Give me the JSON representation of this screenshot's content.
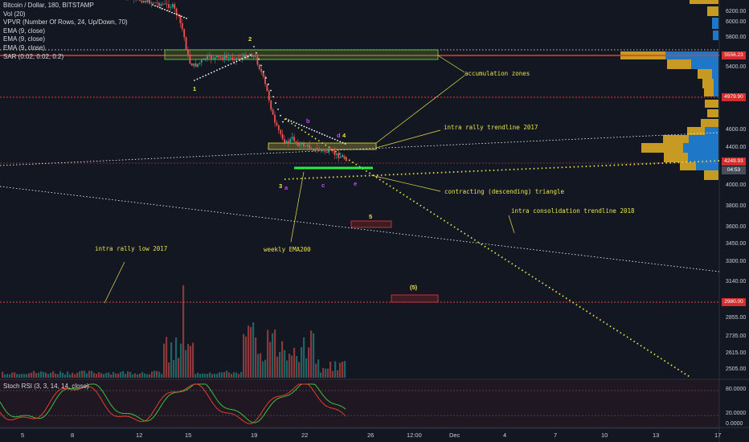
{
  "legend": {
    "title": "Bitcoin / Dollar, 180, BITSTAMP",
    "indicators": [
      "Vol (20)",
      "VPVR (Number Of Rows, 24, Up/Down, 70)",
      "EMA (9, close)",
      "EMA (9, close)",
      "EMA (9, close)",
      "SAR (0.02, 0.02, 0.2)"
    ]
  },
  "rsi_legend": "Stoch RSI (3, 3, 14, 14, close)",
  "annotations": {
    "accumulation": "accumulation zones",
    "intra_rally_trend": "intra rally trendline 2017",
    "contracting": "contracting (descending) triangle",
    "intra_consolidation": "intra consolidation trendline 2018",
    "weekly_ema": "weekly EMA200",
    "intra_rally_low": "intra rally low 2017"
  },
  "waves": {
    "w1": "1",
    "w2": "2",
    "w3": "3",
    "w4": "4",
    "w5": "5",
    "w5p": "(5)",
    "a": "a",
    "b": "b",
    "c": "c",
    "d": "d",
    "e": "e"
  },
  "price_axis": [
    "6200.00",
    "6000.00",
    "5800.00",
    "5400.00",
    "4600.00",
    "4400.00",
    "4000.00",
    "3800.00",
    "3600.00",
    "3450.00",
    "3300.00",
    "3140.00",
    "2855.00",
    "2735.00",
    "2615.00",
    "2505.00"
  ],
  "price_tags": {
    "level_high": "5556.23",
    "level_mid": "4979.90",
    "current": "4249.93",
    "countdown": "04:53",
    "level_low": "2980.00"
  },
  "rsi_axis": [
    "80.0000",
    "20.0000",
    "0.0000"
  ],
  "time_axis": [
    "5",
    "8",
    "12",
    "15",
    "19",
    "22",
    "26",
    "12:00",
    "Dec",
    "4",
    "7",
    "10",
    "13",
    "17"
  ],
  "colors": {
    "background": "#131722",
    "bull": "#26a69a",
    "bear": "#ef5350",
    "annotation": "#e8e24a",
    "level_red": "#e33b3b",
    "vp_up": "#1f77c8",
    "vp_down": "#c69a23",
    "rsi_k": "#3fbf3f",
    "rsi_d": "#e04030"
  }
}
